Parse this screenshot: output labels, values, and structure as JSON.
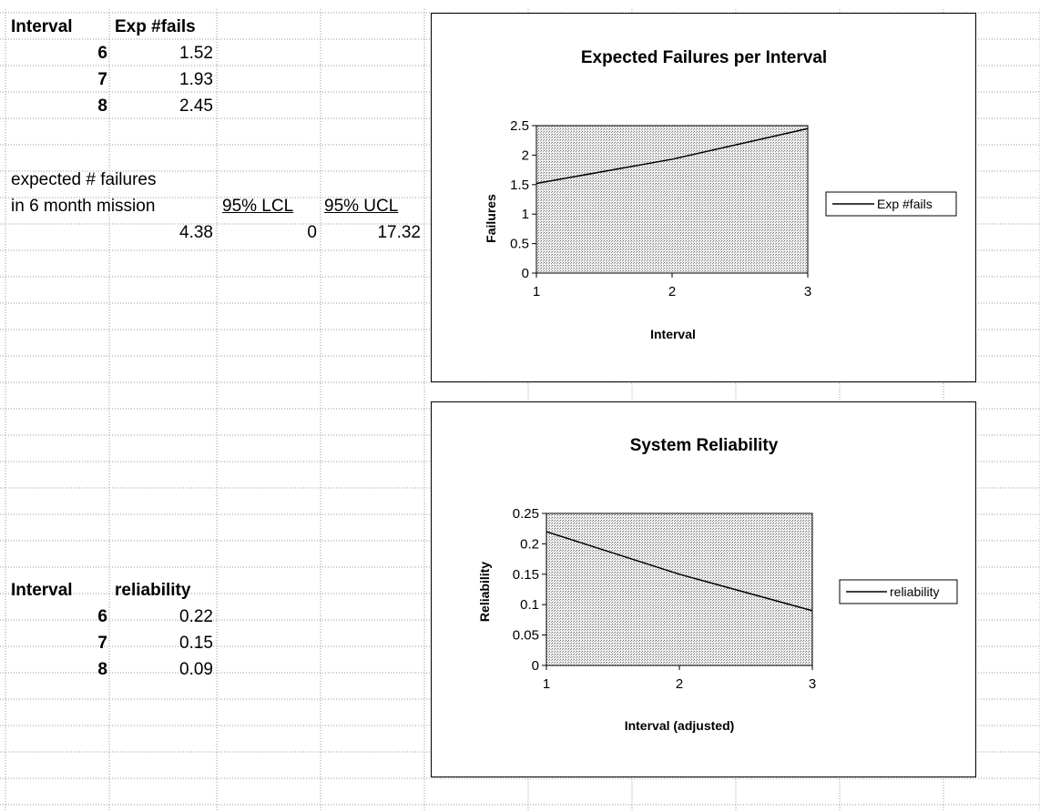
{
  "sheet": {
    "top": {
      "col_interval_header": "Interval",
      "col_exp_header": "Exp #fails",
      "rows": [
        {
          "interval": "6",
          "value": "1.52"
        },
        {
          "interval": "7",
          "value": "1.93"
        },
        {
          "interval": "8",
          "value": "2.45"
        }
      ]
    },
    "mission": {
      "label_line1": "expected # failures",
      "label_line2": "in 6 month mission",
      "lcl_header": "95% LCL",
      "ucl_header": "95% UCL",
      "expected": "4.38",
      "lcl": "0",
      "ucl": "17.32"
    },
    "bottom": {
      "col_interval_header": "Interval",
      "col_rel_header": "reliability",
      "rows": [
        {
          "interval": "6",
          "value": "0.22"
        },
        {
          "interval": "7",
          "value": "0.15"
        },
        {
          "interval": "8",
          "value": "0.09"
        }
      ]
    }
  },
  "chart_data": [
    {
      "type": "line",
      "title": "Expected Failures per Interval",
      "xlabel": "Interval",
      "ylabel": "Failures",
      "x": [
        1,
        2,
        3
      ],
      "series": [
        {
          "name": "Exp #fails",
          "values": [
            1.52,
            1.93,
            2.45
          ]
        }
      ],
      "xlim": [
        1,
        3
      ],
      "ylim": [
        0,
        2.5
      ],
      "yticks": [
        "0",
        "0.5",
        "1",
        "1.5",
        "2",
        "2.5"
      ],
      "xticks": [
        "1",
        "2",
        "3"
      ],
      "legend": "right",
      "plot_fill": "stippled-gray"
    },
    {
      "type": "line",
      "title": "System Reliability",
      "xlabel": "Interval (adjusted)",
      "ylabel": "Reliability",
      "x": [
        1,
        2,
        3
      ],
      "series": [
        {
          "name": "reliability",
          "values": [
            0.22,
            0.15,
            0.09
          ]
        }
      ],
      "xlim": [
        1,
        3
      ],
      "ylim": [
        0,
        0.25
      ],
      "yticks": [
        "0",
        "0.05",
        "0.1",
        "0.15",
        "0.2",
        "0.25"
      ],
      "xticks": [
        "1",
        "2",
        "3"
      ],
      "legend": "right",
      "plot_fill": "stippled-gray"
    }
  ]
}
